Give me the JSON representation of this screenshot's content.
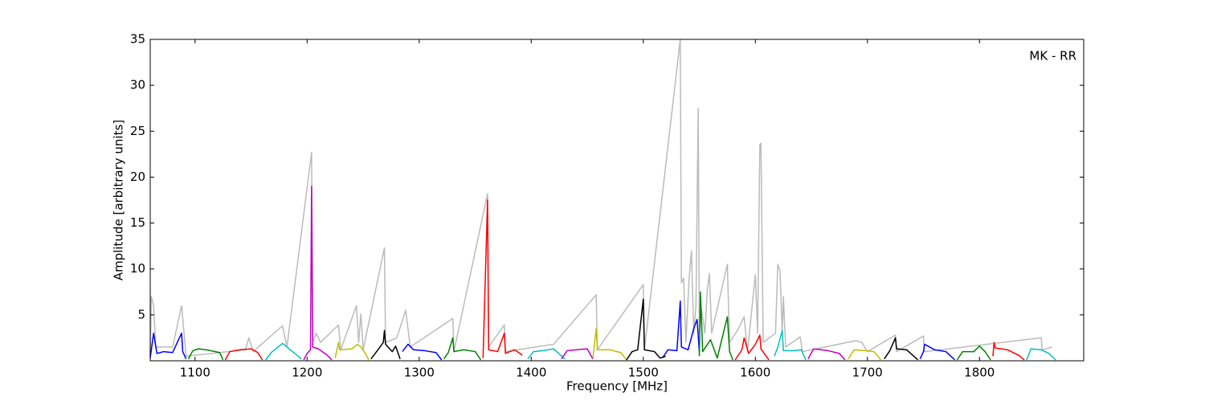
{
  "chart_data": {
    "type": "line",
    "annotation": "MK - RR",
    "xlabel": "Frequency [MHz]",
    "ylabel": "Amplitude [arbitrary units]",
    "xlim": [
      1060,
      1893
    ],
    "ylim": [
      0,
      35
    ],
    "xticks": [
      1100,
      1200,
      1300,
      1400,
      1500,
      1600,
      1700,
      1800
    ],
    "yticks": [
      5,
      10,
      15,
      20,
      25,
      30,
      35
    ],
    "series": [
      {
        "color": "#bbbbbb",
        "x": [
          1060,
          1061,
          1063,
          1065,
          1080,
          1088,
          1092,
          1145,
          1148,
          1152,
          1175,
          1178,
          1182,
          1204,
          1205,
          1208,
          1212,
          1228,
          1230,
          1244,
          1246,
          1248,
          1250,
          1269,
          1270,
          1280,
          1288,
          1292,
          1330,
          1331,
          1361,
          1362,
          1376,
          1377,
          1420,
          1458,
          1459,
          1500,
          1501,
          1533,
          1534,
          1536,
          1538,
          1541,
          1543,
          1545,
          1547,
          1549,
          1550,
          1552,
          1555,
          1557,
          1559,
          1561,
          1575,
          1577,
          1584,
          1590,
          1593,
          1600,
          1602,
          1604,
          1605,
          1607,
          1618,
          1620,
          1622,
          1624,
          1625,
          1627,
          1640,
          1642,
          1690,
          1695,
          1700,
          1725,
          1726,
          1750,
          1751,
          1855,
          1856,
          1865
        ],
        "values": [
          0.5,
          7,
          6,
          1.5,
          1.5,
          6,
          0.5,
          1.2,
          2.5,
          1.0,
          3.5,
          3.8,
          1.5,
          22.7,
          2,
          3,
          2,
          3.9,
          1.2,
          6,
          2,
          5.1,
          1.2,
          12.3,
          2,
          2.5,
          5.5,
          1.5,
          4.6,
          1.0,
          18.2,
          1.5,
          3.9,
          1.0,
          1.8,
          7.2,
          1.2,
          8.3,
          1.2,
          35,
          8.5,
          9,
          2,
          9.2,
          12,
          3,
          6,
          27.5,
          3,
          5.5,
          3,
          7.6,
          9.5,
          3,
          10.5,
          2,
          3.3,
          4.8,
          1,
          9.4,
          3,
          23.5,
          23.7,
          2,
          3,
          10.5,
          9.8,
          3,
          7,
          1.5,
          2.6,
          1,
          2.2,
          2.0,
          1.0,
          2.8,
          1.0,
          2.7,
          1.0,
          2.5,
          1.2,
          1.5
        ]
      },
      {
        "color": "#0000ff",
        "x": [
          1060,
          1063,
          1066,
          1072,
          1080,
          1088,
          1089,
          1092,
          null,
          1285,
          1290,
          1295,
          1305,
          1315,
          1320,
          null,
          1517,
          1522,
          1530,
          1533,
          1534,
          1540,
          1545,
          1548,
          1550,
          null,
          1747,
          1750,
          1751,
          1760,
          1770,
          1778
        ],
        "values": [
          0.3,
          3.0,
          0.8,
          1.0,
          0.9,
          3.0,
          1.0,
          0.2,
          null,
          1.0,
          1.8,
          1.2,
          1.1,
          0.9,
          0.1,
          null,
          0.3,
          1.2,
          1.1,
          6.5,
          1.5,
          1.2,
          3.5,
          4.5,
          1.0,
          null,
          0.2,
          1.0,
          1.8,
          1.2,
          1.0,
          0.1
        ]
      },
      {
        "color": "#008000",
        "x": [
          1094,
          1098,
          1103,
          1110,
          1118,
          1122,
          1125,
          null,
          1322,
          1326,
          1330,
          1331,
          1340,
          1350,
          1355,
          null,
          1550,
          1551,
          1553,
          1560,
          1566,
          1575,
          1577,
          1580,
          null,
          1780,
          1785,
          1795,
          1800,
          1805,
          1810
        ],
        "values": [
          0.2,
          1.1,
          1.3,
          1.2,
          1.0,
          0.9,
          0.1,
          null,
          0.2,
          0.9,
          2.5,
          1.0,
          1.2,
          1.0,
          0.1,
          null,
          0.5,
          7.5,
          1.0,
          2.3,
          0.3,
          4.8,
          1.0,
          0.1,
          null,
          0.1,
          1.0,
          1.0,
          1.6,
          1.0,
          0.1
        ]
      },
      {
        "color": "#ff0000",
        "x": [
          1127,
          1131,
          1140,
          1150,
          1156,
          1160,
          null,
          1357,
          1361,
          1362,
          1370,
          1376,
          1377,
          1385,
          1390,
          1392,
          null,
          1582,
          1588,
          1590,
          1594,
          1600,
          1604,
          1605,
          1612,
          null,
          1812,
          1813,
          1814,
          1825,
          1835,
          1840
        ],
        "values": [
          0.1,
          1.0,
          1.2,
          1.3,
          0.9,
          0.1,
          null,
          0.3,
          17.5,
          1.2,
          1.0,
          3.0,
          0.8,
          1.2,
          0.8,
          0.6,
          null,
          0.1,
          1.2,
          2.5,
          0.8,
          1.8,
          2.8,
          1.3,
          0.1,
          null,
          0.5,
          2.0,
          1.4,
          1.2,
          0.6,
          0.1
        ]
      },
      {
        "color": "#00bfbf",
        "x": [
          1163,
          1168,
          1178,
          1185,
          1195,
          null,
          1397,
          1402,
          1410,
          1420,
          1430,
          null,
          1617,
          1620,
          1624,
          1625,
          1635,
          1641,
          1645,
          null,
          1842,
          1846,
          1855,
          1862,
          1868
        ],
        "values": [
          0.1,
          0.9,
          1.9,
          1.2,
          0.2,
          null,
          0.2,
          1.0,
          1.1,
          1.3,
          0.2,
          null,
          0.5,
          1.5,
          3.3,
          1.1,
          1.1,
          1.2,
          0.1,
          null,
          0.1,
          1.3,
          1.2,
          0.8,
          0.1
        ]
      },
      {
        "color": "#bf00bf",
        "x": [
          1197,
          1200,
          1203,
          1204,
          1205,
          1210,
          1218,
          1222,
          null,
          1427,
          1432,
          1440,
          1450,
          1455,
          null,
          1647,
          1652,
          1665,
          1675,
          1680
        ],
        "values": [
          0.1,
          0.8,
          1.2,
          19.0,
          1.5,
          1.3,
          0.6,
          0.1,
          null,
          0.2,
          1.1,
          1.2,
          1.3,
          0.2,
          null,
          0.2,
          1.3,
          1.1,
          0.8,
          0.1
        ]
      },
      {
        "color": "#bfbf00",
        "x": [
          1225,
          1228,
          1229,
          1240,
          1245,
          1248,
          1252,
          1255,
          null,
          1455,
          1458,
          1459,
          1470,
          1480,
          1485,
          null,
          1683,
          1688,
          1698,
          1706,
          1712
        ],
        "values": [
          0.3,
          2.0,
          1.2,
          1.3,
          1.8,
          1.5,
          0.8,
          0.1,
          null,
          0.3,
          3.5,
          1.2,
          1.2,
          0.9,
          0.1,
          null,
          0.2,
          1.2,
          1.1,
          1.0,
          0.1
        ]
      },
      {
        "color": "#000000",
        "x": [
          1257,
          1262,
          1268,
          1269,
          1270,
          1276,
          1279,
          1283,
          null,
          1485,
          1490,
          1495,
          1500,
          1501,
          1510,
          1515,
          1520,
          null,
          1715,
          1720,
          1725,
          1726,
          1735,
          1745
        ],
        "values": [
          0.2,
          1.0,
          2.0,
          3.3,
          1.8,
          1.0,
          1.6,
          0.2,
          null,
          0.1,
          1.0,
          1.2,
          6.7,
          1.2,
          1.0,
          0.3,
          0.5,
          null,
          0.2,
          1.1,
          2.5,
          1.3,
          1.2,
          0.1
        ]
      }
    ]
  }
}
